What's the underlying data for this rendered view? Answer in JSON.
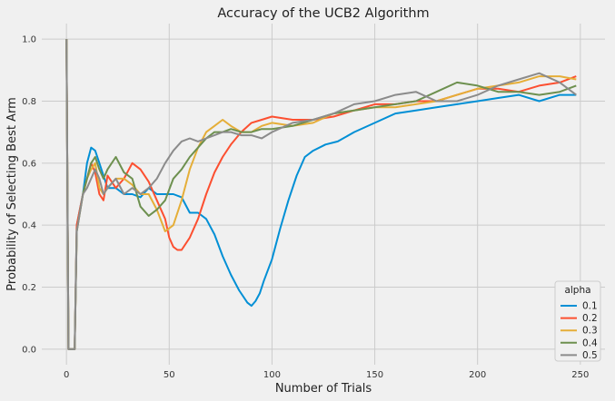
{
  "chart_data": {
    "type": "line",
    "title": "Accuracy of the UCB2 Algorithm",
    "xlabel": "Number of Trials",
    "ylabel": "Probability of Selecting Best Arm",
    "xlim": [
      -12,
      262
    ],
    "ylim": [
      -0.05,
      1.05
    ],
    "xticks": [
      0,
      50,
      100,
      150,
      200,
      250
    ],
    "yticks": [
      0.0,
      0.2,
      0.4,
      0.6,
      0.8,
      1.0
    ],
    "xtick_labels": [
      "0",
      "50",
      "100",
      "150",
      "200",
      "250"
    ],
    "ytick_labels": [
      "0.0",
      "0.2",
      "0.4",
      "0.6",
      "0.8",
      "1.0"
    ],
    "grid": true,
    "legend": {
      "title": "alpha",
      "placement": "bottom-right"
    },
    "series": [
      {
        "name": "0.1",
        "color": "#008fd5",
        "x": [
          0,
          1,
          2,
          4,
          5,
          8,
          10,
          12,
          14,
          16,
          18,
          20,
          24,
          28,
          32,
          36,
          40,
          44,
          48,
          52,
          56,
          60,
          64,
          68,
          72,
          76,
          80,
          84,
          88,
          90,
          92,
          94,
          96,
          100,
          104,
          108,
          112,
          116,
          120,
          126,
          132,
          140,
          150,
          160,
          170,
          180,
          190,
          200,
          210,
          220,
          230,
          240,
          248
        ],
        "y": [
          1.0,
          0.0,
          0.0,
          0.0,
          0.4,
          0.5,
          0.6,
          0.65,
          0.64,
          0.6,
          0.56,
          0.52,
          0.52,
          0.5,
          0.5,
          0.49,
          0.52,
          0.5,
          0.5,
          0.5,
          0.49,
          0.44,
          0.44,
          0.42,
          0.37,
          0.3,
          0.24,
          0.19,
          0.15,
          0.14,
          0.155,
          0.18,
          0.22,
          0.29,
          0.39,
          0.48,
          0.56,
          0.62,
          0.64,
          0.66,
          0.67,
          0.7,
          0.73,
          0.76,
          0.77,
          0.78,
          0.79,
          0.8,
          0.81,
          0.82,
          0.8,
          0.82,
          0.82
        ]
      },
      {
        "name": "0.2",
        "color": "#fc4f30",
        "x": [
          0,
          1,
          2,
          4,
          5,
          8,
          10,
          12,
          14,
          16,
          18,
          20,
          24,
          28,
          32,
          36,
          40,
          44,
          48,
          50,
          52,
          54,
          56,
          60,
          64,
          68,
          72,
          76,
          80,
          85,
          90,
          95,
          100,
          110,
          120,
          130,
          140,
          150,
          160,
          170,
          180,
          190,
          200,
          210,
          220,
          230,
          240,
          248
        ],
        "y": [
          1.0,
          0.0,
          0.0,
          0.0,
          0.4,
          0.5,
          0.55,
          0.6,
          0.57,
          0.5,
          0.48,
          0.56,
          0.52,
          0.55,
          0.6,
          0.58,
          0.54,
          0.48,
          0.42,
          0.36,
          0.33,
          0.32,
          0.32,
          0.36,
          0.42,
          0.5,
          0.57,
          0.62,
          0.66,
          0.7,
          0.73,
          0.74,
          0.75,
          0.74,
          0.74,
          0.75,
          0.77,
          0.79,
          0.79,
          0.8,
          0.8,
          0.82,
          0.84,
          0.84,
          0.83,
          0.85,
          0.86,
          0.88
        ]
      },
      {
        "name": "0.3",
        "color": "#e5ae38",
        "x": [
          0,
          1,
          2,
          4,
          5,
          8,
          10,
          12,
          14,
          16,
          18,
          20,
          24,
          28,
          32,
          36,
          40,
          44,
          48,
          52,
          56,
          60,
          64,
          68,
          72,
          76,
          80,
          85,
          90,
          95,
          100,
          110,
          120,
          130,
          140,
          150,
          160,
          170,
          180,
          190,
          200,
          210,
          220,
          230,
          240,
          248
        ],
        "y": [
          1.0,
          0.0,
          0.0,
          0.0,
          0.38,
          0.5,
          0.55,
          0.58,
          0.6,
          0.52,
          0.5,
          0.52,
          0.55,
          0.55,
          0.53,
          0.5,
          0.5,
          0.45,
          0.38,
          0.4,
          0.48,
          0.58,
          0.65,
          0.7,
          0.72,
          0.74,
          0.72,
          0.7,
          0.7,
          0.72,
          0.73,
          0.72,
          0.73,
          0.76,
          0.77,
          0.78,
          0.78,
          0.79,
          0.8,
          0.82,
          0.84,
          0.85,
          0.86,
          0.88,
          0.88,
          0.87
        ]
      },
      {
        "name": "0.4",
        "color": "#6d904f",
        "x": [
          0,
          1,
          2,
          4,
          5,
          8,
          10,
          12,
          14,
          16,
          18,
          20,
          24,
          28,
          32,
          36,
          40,
          44,
          48,
          52,
          56,
          60,
          64,
          68,
          72,
          76,
          80,
          85,
          90,
          95,
          100,
          110,
          120,
          130,
          140,
          150,
          160,
          170,
          180,
          190,
          200,
          210,
          220,
          230,
          240,
          248
        ],
        "y": [
          1.0,
          0.0,
          0.0,
          0.0,
          0.38,
          0.5,
          0.55,
          0.6,
          0.62,
          0.58,
          0.55,
          0.58,
          0.62,
          0.57,
          0.55,
          0.46,
          0.43,
          0.45,
          0.48,
          0.55,
          0.58,
          0.62,
          0.65,
          0.68,
          0.7,
          0.7,
          0.71,
          0.7,
          0.7,
          0.71,
          0.71,
          0.72,
          0.74,
          0.76,
          0.77,
          0.78,
          0.79,
          0.8,
          0.83,
          0.86,
          0.85,
          0.83,
          0.83,
          0.82,
          0.83,
          0.85
        ]
      },
      {
        "name": "0.5",
        "color": "#8b8b8b",
        "x": [
          0,
          1,
          2,
          4,
          5,
          8,
          10,
          12,
          14,
          16,
          18,
          20,
          24,
          28,
          32,
          36,
          40,
          44,
          48,
          52,
          56,
          60,
          64,
          68,
          72,
          76,
          80,
          85,
          90,
          95,
          100,
          110,
          120,
          130,
          140,
          150,
          160,
          170,
          180,
          190,
          200,
          210,
          220,
          230,
          240,
          248
        ],
        "y": [
          1.0,
          0.0,
          0.0,
          0.0,
          0.38,
          0.5,
          0.52,
          0.55,
          0.58,
          0.55,
          0.5,
          0.52,
          0.55,
          0.5,
          0.52,
          0.5,
          0.52,
          0.55,
          0.6,
          0.64,
          0.67,
          0.68,
          0.67,
          0.68,
          0.69,
          0.7,
          0.7,
          0.69,
          0.69,
          0.68,
          0.7,
          0.73,
          0.74,
          0.76,
          0.79,
          0.8,
          0.82,
          0.83,
          0.8,
          0.8,
          0.82,
          0.85,
          0.87,
          0.89,
          0.86,
          0.82
        ]
      }
    ]
  }
}
